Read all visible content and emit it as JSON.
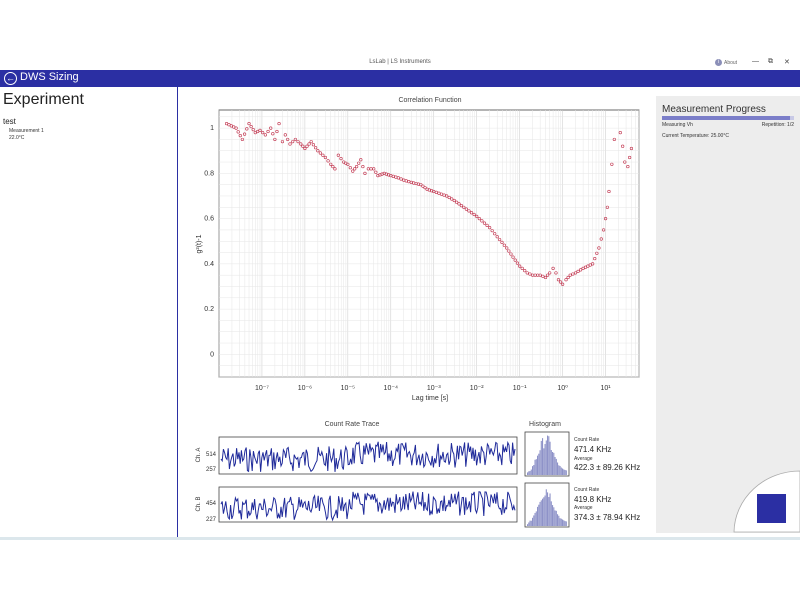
{
  "window": {
    "title": "LsLab | LS Instruments",
    "about_label": "About",
    "about_icon": "i",
    "min_glyph": "—",
    "restore_glyph": "⧉",
    "close_glyph": "✕"
  },
  "topbar": {
    "title": "DWS Sizing",
    "back_glyph": "←",
    "color": "#2b2fa3"
  },
  "experiment": {
    "heading": "Experiment",
    "name": "test",
    "measurement": "Measurement 1",
    "temperature": "22.0°C"
  },
  "progress": {
    "heading": "Measurement Progress",
    "status": "Measuring Vh",
    "repetition": "Repetition: 1/2",
    "current_temperature": "Current Temperature: 25.00°C",
    "fraction": 0.97
  },
  "correlation": {
    "title": "Correlation Function",
    "ylabel": "g²(t)-1",
    "xlabel": "Lag time [s]",
    "yticks": [
      "0",
      "0.2",
      "0.4",
      "0.6",
      "0.8",
      "1"
    ],
    "xticks": [
      "10⁻⁷",
      "10⁻⁶",
      "10⁻⁵",
      "10⁻⁴",
      "10⁻³",
      "10⁻²",
      "10⁻¹",
      "10⁰",
      "10¹"
    ]
  },
  "count_rate": {
    "title": "Count Rate Trace",
    "ch_a_label": "Ch. A",
    "ch_b_label": "Ch. B",
    "ch_a_ticks": [
      "514",
      "257"
    ],
    "ch_b_ticks": [
      "454",
      "227"
    ]
  },
  "histogram": {
    "title": "Histogram",
    "a": {
      "count_rate_label": "Count Rate",
      "count_rate": "471.4 KHz",
      "average_label": "Average",
      "average": "422.3 ± 89.26 KHz"
    },
    "b": {
      "count_rate_label": "Count Rate",
      "count_rate": "419.8 KHz",
      "average_label": "Average",
      "average": "374.3 ± 78.94 KHz"
    }
  },
  "chart_data": {
    "type": "scatter",
    "title": "Correlation Function",
    "xlabel": "Lag time [s]",
    "ylabel": "g²(t)-1",
    "xscale": "log",
    "xlim": [
      1e-08,
      60
    ],
    "ylim": [
      -0.1,
      1.08
    ],
    "grid": true,
    "marker_color": "#c0304a",
    "series": [
      {
        "x": [
          1.5e-08,
          2.5e-08,
          3.5e-08,
          5e-08,
          7e-08,
          9e-08,
          1.2e-07,
          1.6e-07,
          2e-07,
          2.5e-07,
          3e-07,
          3.5e-07,
          4.5e-07,
          6e-07,
          8e-07,
          1e-06,
          1.4e-06,
          2e-06,
          3e-06,
          4e-06,
          5e-06,
          6e-06,
          8e-06,
          1e-05,
          1.3e-05,
          1.6e-05,
          2e-05,
          2.5e-05,
          3e-05,
          4e-05,
          5e-05,
          7e-05,
          0.0001,
          0.00015,
          0.0002,
          0.0003,
          0.0005,
          0.0007,
          0.001,
          0.002,
          0.003,
          0.005,
          0.01,
          0.02,
          0.03,
          0.05,
          0.07,
          0.1,
          0.15,
          0.2,
          0.3,
          0.4,
          0.5,
          0.6,
          0.7,
          0.8,
          1.0,
          1.2,
          1.5,
          2,
          3,
          5,
          7,
          9,
          10,
          11,
          12,
          14,
          16,
          18,
          20,
          22,
          25,
          28,
          33,
          40
        ],
        "y": [
          1.02,
          1.0,
          0.95,
          1.02,
          0.98,
          0.99,
          0.97,
          1.0,
          0.95,
          1.02,
          0.94,
          0.97,
          0.93,
          0.95,
          0.93,
          0.91,
          0.94,
          0.9,
          0.87,
          0.84,
          0.82,
          0.88,
          0.85,
          0.84,
          0.81,
          0.83,
          0.86,
          0.8,
          0.82,
          0.82,
          0.79,
          0.8,
          0.79,
          0.78,
          0.77,
          0.76,
          0.75,
          0.73,
          0.72,
          0.7,
          0.68,
          0.65,
          0.61,
          0.56,
          0.52,
          0.47,
          0.43,
          0.39,
          0.36,
          0.35,
          0.35,
          0.34,
          0.36,
          0.38,
          0.36,
          0.33,
          0.31,
          0.33,
          0.35,
          0.36,
          0.38,
          0.4,
          0.47,
          0.55,
          0.6,
          0.65,
          0.72,
          0.84,
          0.95,
          1.1,
          1.1,
          0.98,
          0.92,
          0.85,
          0.83,
          0.91
        ]
      }
    ]
  }
}
